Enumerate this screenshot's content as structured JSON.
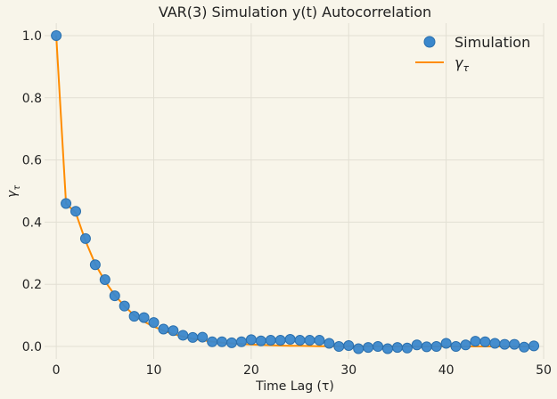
{
  "chart_data": {
    "type": "scatter",
    "title": "VAR(3) Simulation y(t) Autocorrelation",
    "xlabel": "Time Lag (τ)",
    "ylabel": "γτ",
    "ylabel_main": "γ",
    "ylabel_sub": "τ",
    "xlim": [
      -1.2,
      50
    ],
    "ylim": [
      -0.04,
      1.04
    ],
    "xticks": [
      0,
      10,
      20,
      30,
      40,
      50
    ],
    "yticks": [
      0.0,
      0.2,
      0.4,
      0.6,
      0.8,
      1.0
    ],
    "ytick_labels": [
      "0.0",
      "0.2",
      "0.4",
      "0.6",
      "0.8",
      "1.0"
    ],
    "grid": true,
    "legend_position": "top-right",
    "series": [
      {
        "name": "Simulation",
        "kind": "markers",
        "color": "#3a87cc",
        "x": [
          0,
          1,
          2,
          3,
          4,
          5,
          6,
          7,
          8,
          9,
          10,
          11,
          12,
          13,
          14,
          15,
          16,
          17,
          18,
          19,
          20,
          21,
          22,
          23,
          24,
          25,
          26,
          27,
          28,
          29,
          30,
          31,
          32,
          33,
          34,
          35,
          36,
          37,
          38,
          39,
          40,
          41,
          42,
          43,
          44,
          45,
          46,
          47,
          48,
          49
        ],
        "y": [
          1.0,
          0.46,
          0.435,
          0.347,
          0.263,
          0.215,
          0.163,
          0.13,
          0.097,
          0.093,
          0.077,
          0.056,
          0.051,
          0.036,
          0.029,
          0.03,
          0.015,
          0.015,
          0.012,
          0.015,
          0.022,
          0.018,
          0.02,
          0.02,
          0.023,
          0.02,
          0.02,
          0.02,
          0.01,
          0.0,
          0.003,
          -0.007,
          -0.003,
          0.0,
          -0.007,
          -0.003,
          -0.005,
          0.005,
          -0.001,
          0.0,
          0.01,
          0.0,
          0.005,
          0.017,
          0.015,
          0.01,
          0.007,
          0.007,
          -0.002,
          0.002
        ]
      },
      {
        "name": "γτ",
        "name_main": "γ",
        "name_sub": "τ",
        "kind": "line",
        "color": "#ff8c00",
        "x": [
          0,
          1,
          2,
          3,
          4,
          5,
          6,
          7,
          8,
          9,
          10,
          11,
          12,
          13,
          14,
          15,
          16,
          17,
          18,
          19,
          20,
          21,
          22,
          23,
          24,
          25,
          26,
          27,
          28,
          29,
          30,
          31,
          32,
          33,
          34,
          35,
          36,
          37,
          38,
          39,
          40,
          41,
          42,
          43,
          44,
          45,
          46,
          47,
          48,
          49
        ],
        "y": [
          1.0,
          0.46,
          0.43,
          0.34,
          0.265,
          0.21,
          0.165,
          0.13,
          0.1,
          0.08,
          0.064,
          0.051,
          0.04,
          0.032,
          0.025,
          0.02,
          0.016,
          0.012,
          0.01,
          0.008,
          0.006,
          0.005,
          0.004,
          0.003,
          0.002,
          0.002,
          0.0015,
          0.001,
          0.001,
          0.0008,
          0.0006,
          0.0005,
          0.0004,
          0.0003,
          0.0002,
          0.0002,
          0.0001,
          0.0001,
          0.0001,
          0.0,
          0.0,
          0.0,
          0.0,
          0.0,
          0.0,
          0.0,
          0.0,
          0.0,
          0.0,
          0.0
        ]
      }
    ]
  }
}
